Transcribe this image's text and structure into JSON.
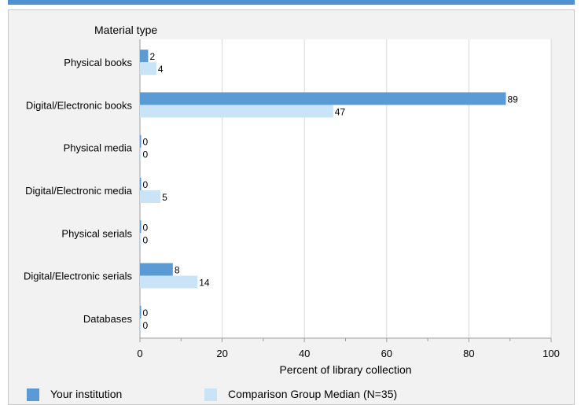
{
  "chart_data": {
    "type": "bar",
    "orientation": "horizontal",
    "category_axis_title": "Material type",
    "categories": [
      "Physical books",
      "Digital/Electronic books",
      "Physical media",
      "Digital/Electronic media",
      "Physical serials",
      "Digital/Electronic serials",
      "Databases"
    ],
    "series": [
      {
        "name": "Your institution",
        "color": "#5b9bd5",
        "values": [
          2,
          89,
          0,
          0,
          0,
          8,
          0
        ]
      },
      {
        "name": "Comparison Group Median (N=35)",
        "color": "#c9e3f7",
        "values": [
          4,
          47,
          0,
          5,
          0,
          14,
          0
        ]
      }
    ],
    "xlabel": "Percent of library collection",
    "xlim": [
      0,
      100
    ],
    "xticks": [
      0,
      20,
      40,
      60,
      80,
      100
    ],
    "grid": true,
    "legend_position": "bottom"
  }
}
